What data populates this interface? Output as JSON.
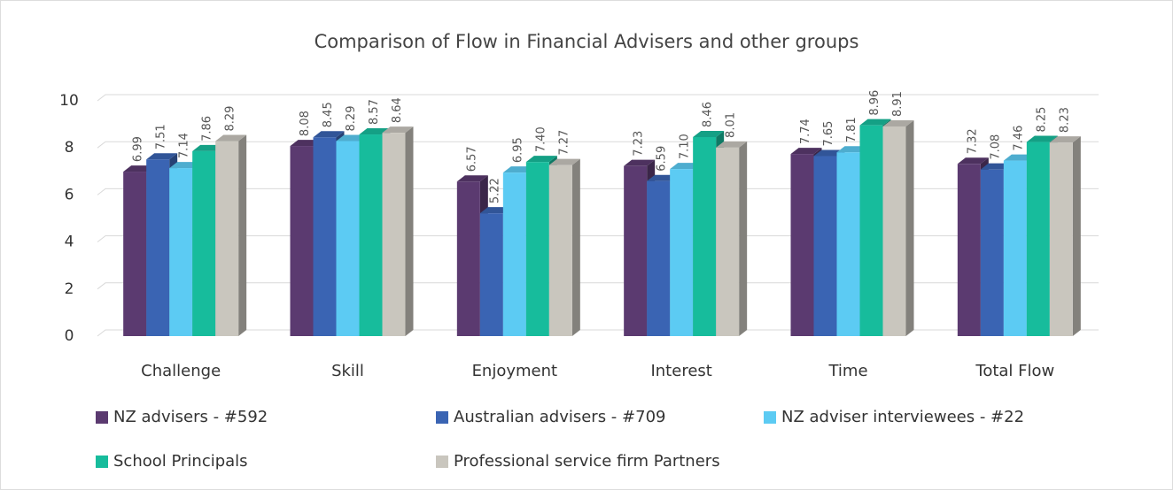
{
  "chart_data": {
    "type": "bar3d",
    "title": "Comparison of Flow in Financial Advisers and other groups",
    "categories": [
      "Challenge",
      "Skill",
      "Enjoyment",
      "Interest",
      "Time",
      "Total Flow"
    ],
    "series": [
      {
        "name": "NZ advisers - #592",
        "color": "#5b3a70",
        "values": [
          6.99,
          8.08,
          6.57,
          7.23,
          7.74,
          7.32
        ],
        "value_labels": [
          "6.99",
          "8.08",
          "6.57",
          "7.23",
          "7.74",
          "7.32"
        ]
      },
      {
        "name": "Australian advisers - #709",
        "color": "#3a64b3",
        "values": [
          7.51,
          8.45,
          5.22,
          6.59,
          7.65,
          7.08
        ],
        "value_labels": [
          "7.51",
          "8.45",
          "5.22",
          "6.59",
          "7.65",
          "7.08"
        ]
      },
      {
        "name": "NZ adviser interviewees - #22",
        "color": "#5ccbf3",
        "values": [
          7.14,
          8.29,
          6.95,
          7.1,
          7.81,
          7.46
        ],
        "value_labels": [
          "7.14",
          "8.29",
          "6.95",
          "7.10",
          "7.81",
          "7.46"
        ]
      },
      {
        "name": "School Principals",
        "color": "#17bc9c",
        "values": [
          7.86,
          8.57,
          7.4,
          8.46,
          8.96,
          8.25
        ],
        "value_labels": [
          "7.86",
          "8.57",
          "7.40",
          "8.46",
          "8.96",
          "8.25"
        ]
      },
      {
        "name": "Professional service firm Partners",
        "color": "#c9c6be",
        "values": [
          8.29,
          8.64,
          7.27,
          8.01,
          8.91,
          8.23
        ],
        "value_labels": [
          "8.29",
          "8.64",
          "7.27",
          "8.01",
          "8.91",
          "8.23"
        ]
      }
    ],
    "ylim": [
      0,
      10
    ],
    "yticks": [
      0,
      2,
      4,
      6,
      8,
      10
    ],
    "grid": true
  }
}
